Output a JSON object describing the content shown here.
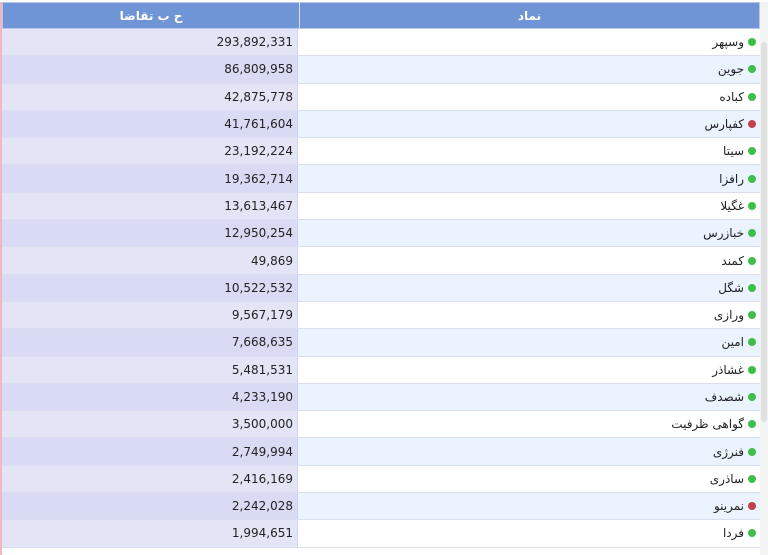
{
  "table": {
    "headers": {
      "demand": "ح ب تقاضا",
      "symbol": "نماد"
    },
    "rows": [
      {
        "symbol": "وسپهر",
        "demand": "293,892,331",
        "status": "green"
      },
      {
        "symbol": "جوین",
        "demand": "86,809,958",
        "status": "green"
      },
      {
        "symbol": "کباده",
        "demand": "42,875,778",
        "status": "green"
      },
      {
        "symbol": "کفپارس",
        "demand": "41,761,604",
        "status": "red"
      },
      {
        "symbol": "سیتا",
        "demand": "23,192,224",
        "status": "green"
      },
      {
        "symbol": "رافزا",
        "demand": "19,362,714",
        "status": "green"
      },
      {
        "symbol": "غگیلا",
        "demand": "13,613,467",
        "status": "green"
      },
      {
        "symbol": "خبازرس",
        "demand": "12,950,254",
        "status": "green"
      },
      {
        "symbol": "کمند",
        "demand": "49,869",
        "status": "green"
      },
      {
        "symbol": "شگل",
        "demand": "10,522,532",
        "status": "green"
      },
      {
        "symbol": "ورازی",
        "demand": "9,567,179",
        "status": "green"
      },
      {
        "symbol": "امین",
        "demand": "7,668,635",
        "status": "green"
      },
      {
        "symbol": "غشاذر",
        "demand": "5,481,531",
        "status": "green"
      },
      {
        "symbol": "شصدف",
        "demand": "4,233,190",
        "status": "green"
      },
      {
        "symbol": "گواهی ظرفیت",
        "demand": "3,500,000",
        "status": "green"
      },
      {
        "symbol": "فنرژی",
        "demand": "2,749,994",
        "status": "green"
      },
      {
        "symbol": "ساذری",
        "demand": "2,416,169",
        "status": "green"
      },
      {
        "symbol": "نمرینو",
        "demand": "2,242,028",
        "status": "red"
      },
      {
        "symbol": "فردا",
        "demand": "1,994,651",
        "status": "green"
      }
    ]
  },
  "colors": {
    "green": "#3fbf4a",
    "red": "#c2404b",
    "header": "#6f95d6"
  }
}
